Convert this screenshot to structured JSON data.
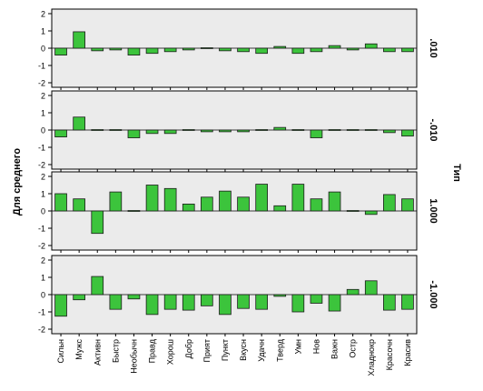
{
  "chart_data": {
    "type": "bar",
    "ylabel": "Для среднего",
    "right_label": "Тип",
    "categories": [
      "Сильн",
      "Мужс",
      "Активн",
      "Быстр",
      "Необычн",
      "Правд",
      "Хорош",
      "Добр",
      "Прият",
      "Пункт",
      "Вкусн",
      "Удачн",
      "Тверд",
      "Умн",
      "Нов",
      "Важн",
      "Остр",
      "Хладнокр",
      "Красочн",
      "Красив"
    ],
    "ylim": [
      -2,
      2
    ],
    "yticks": [
      2,
      1,
      0,
      -1,
      -2
    ],
    "colors": {
      "bar": "#3cc43c",
      "bar_edge": "#1b1b1b",
      "panel_bg": "#ebebeb",
      "zero_line": "#000000"
    },
    "series": [
      {
        "name": ".010",
        "values": [
          -0.4,
          0.95,
          -0.15,
          -0.1,
          -0.4,
          -0.3,
          -0.2,
          -0.1,
          0.0,
          -0.15,
          -0.2,
          -0.3,
          0.1,
          -0.3,
          -0.2,
          0.15,
          -0.1,
          0.25,
          -0.2,
          -0.2
        ]
      },
      {
        "name": "-.010",
        "values": [
          -0.4,
          0.75,
          0.05,
          0.0,
          -0.45,
          -0.2,
          -0.2,
          0.05,
          -0.1,
          -0.1,
          -0.1,
          -0.05,
          0.15,
          0.0,
          -0.45,
          0.05,
          0.05,
          0.05,
          -0.15,
          -0.35
        ]
      },
      {
        "name": "1.000",
        "values": [
          1.0,
          0.7,
          -1.3,
          1.1,
          0.05,
          1.5,
          1.3,
          0.4,
          0.8,
          1.15,
          0.8,
          1.55,
          0.3,
          1.55,
          0.7,
          1.1,
          0.05,
          -0.2,
          0.95,
          0.7
        ]
      },
      {
        "name": "-1.000",
        "values": [
          -1.25,
          -0.3,
          1.05,
          -0.85,
          -0.25,
          -1.15,
          -0.85,
          -0.9,
          -0.65,
          -1.15,
          -0.8,
          -0.85,
          -0.1,
          -1.0,
          -0.5,
          -0.95,
          0.3,
          0.8,
          -0.9,
          -0.85
        ]
      }
    ]
  }
}
